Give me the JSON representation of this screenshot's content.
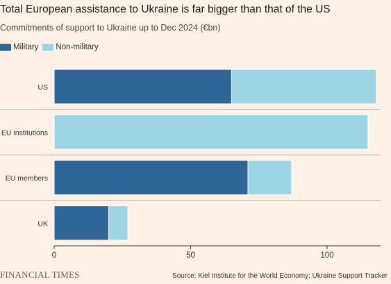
{
  "chart_data": {
    "type": "bar",
    "orientation": "horizontal",
    "stacked": true,
    "title": "Total European assistance to Ukraine is far bigger than that of the US",
    "subtitle": "Commitments of support to Ukraine up to Dec 2024 (€bn)",
    "categories": [
      "US",
      "EU institutions",
      "EU members",
      "UK"
    ],
    "series": [
      {
        "name": "Military",
        "color": "#306599",
        "values": [
          65,
          0,
          71,
          20
        ]
      },
      {
        "name": "Non-military",
        "color": "#9DD5E4",
        "values": [
          53,
          115,
          16,
          7
        ]
      }
    ],
    "xlim": [
      0,
      120
    ],
    "xticks": [
      0,
      50,
      100
    ],
    "grid": false,
    "legend": "top-left"
  },
  "footer": {
    "brand": "FINANCIAL TIMES",
    "source": "Source: Kiel Institute for the World Economy: Ukraine Support Tracker"
  }
}
